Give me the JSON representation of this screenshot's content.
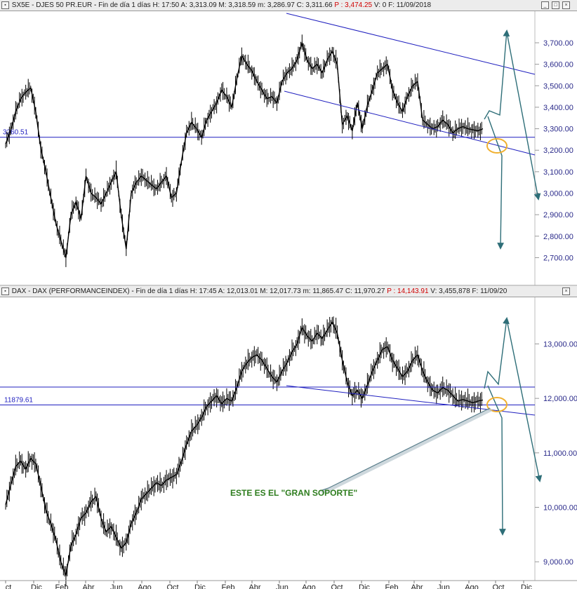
{
  "panel_top": {
    "header": {
      "symbol": "SX5E - DJES 50 PR.EUR",
      "period": "Fin de día 1 días",
      "h": "H: 17:50",
      "a": "A: 3,313.09",
      "m": "M: 3,318.59",
      "mi": "m: 3,286.97",
      "c": "C: 3,311.66",
      "p": "P : 3,474.25",
      "v": "V: 0",
      "f": "F: 11/09/2018"
    },
    "hline_label": "3260.51"
  },
  "panel_bottom": {
    "header": {
      "symbol": "DAX - DAX (PERFORMANCEINDEX)",
      "period": "Fin de día 1 días",
      "h": "H: 17:45",
      "a": "A: 12,013.01",
      "m": "M: 12,017.73",
      "mi": "m: 11,865.47",
      "c": "C: 11,970.27",
      "p": "P : 14,143.91",
      "v": "V: 3,455,878",
      "f": "F: 11/09/20"
    },
    "hline_label": "11879.61",
    "annotation": "ESTE ES EL \"GRAN SOPORTE\""
  },
  "x_axis_labels": [
    "ct",
    "Dic",
    "Feb",
    "Abr",
    "Jun",
    "Ago",
    "Oct",
    "Dic",
    "Feb",
    "Abr",
    "Jun",
    "Ago",
    "Oct",
    "Dic",
    "Feb",
    "Abr",
    "Jun",
    "Ago",
    "Oct",
    "Dic"
  ],
  "colors": {
    "price": "#000000",
    "trend": "#1f1fbf",
    "arrow": "#2e6e78",
    "circle": "#f0b030",
    "axis_text": "#2a2a8a",
    "annotation": "#2e7d1e"
  },
  "chart_data": [
    {
      "type": "line",
      "title": "SX5E - DJES 50 PR.EUR",
      "ylim": [
        2620,
        3775
      ],
      "yticks": [
        2700,
        2800,
        2900,
        3000,
        3100,
        3200,
        3300,
        3400,
        3500,
        3600,
        3700
      ],
      "ytick_labels": [
        "2,700.00",
        "2,800.00",
        "2,900.00",
        "3,000.00",
        "3,100.00",
        "3,200.00",
        "3,300.00",
        "3,400.00",
        "3,500.00",
        "3,600.00",
        "3,700.00"
      ],
      "hline": 3260.51,
      "series": [
        {
          "x": [
            0,
            1,
            2,
            3,
            4,
            5,
            6,
            7,
            8,
            9,
            10,
            11,
            12,
            13,
            14,
            15,
            16,
            17,
            18,
            19,
            20,
            21,
            22,
            23,
            24,
            25,
            26,
            27,
            28,
            29,
            30,
            31,
            32,
            33,
            34,
            35,
            36,
            37,
            38,
            39,
            40,
            41,
            42,
            43,
            44,
            45,
            46,
            47,
            48,
            49,
            50,
            51,
            52,
            53,
            54,
            55,
            56,
            57,
            58,
            59,
            60,
            61,
            62,
            63,
            64,
            65,
            66,
            67,
            68,
            69,
            70,
            71,
            72,
            73,
            74,
            75,
            76,
            77,
            78,
            79,
            80,
            81,
            82,
            83,
            84,
            85,
            86,
            87,
            88,
            89,
            90,
            91,
            92,
            93,
            94,
            95
          ],
          "y": [
            3230,
            3290,
            3380,
            3440,
            3470,
            3490,
            3380,
            3210,
            3100,
            2980,
            2860,
            2780,
            2700,
            2900,
            2960,
            2880,
            3080,
            3000,
            2980,
            2950,
            3000,
            3050,
            3100,
            2900,
            2740,
            3000,
            3050,
            3080,
            3060,
            3040,
            3020,
            3050,
            3080,
            2980,
            3000,
            3150,
            3280,
            3330,
            3300,
            3260,
            3340,
            3380,
            3420,
            3480,
            3450,
            3400,
            3530,
            3640,
            3600,
            3570,
            3520,
            3480,
            3440,
            3450,
            3420,
            3520,
            3560,
            3580,
            3620,
            3700,
            3620,
            3580,
            3600,
            3560,
            3620,
            3660,
            3600,
            3320,
            3360,
            3290,
            3420,
            3300,
            3410,
            3480,
            3560,
            3580,
            3600,
            3480,
            3420,
            3380,
            3450,
            3500,
            3520,
            3340,
            3320,
            3300,
            3310,
            3340,
            3320,
            3280,
            3300,
            3310,
            3300,
            3295,
            3290,
            3300
          ]
        }
      ]
    },
    {
      "type": "line",
      "title": "DAX - DAX (PERFORMANCEINDEX)",
      "ylim": [
        8500,
        13650
      ],
      "yticks": [
        9000,
        10000,
        11000,
        12000,
        13000
      ],
      "ytick_labels": [
        "9,000.00",
        "10,000.00",
        "11,000.00",
        "12,000.00",
        "13,000.00"
      ],
      "hline": 11879.61,
      "series": [
        {
          "x": [
            0,
            1,
            2,
            3,
            4,
            5,
            6,
            7,
            8,
            9,
            10,
            11,
            12,
            13,
            14,
            15,
            16,
            17,
            18,
            19,
            20,
            21,
            22,
            23,
            24,
            25,
            26,
            27,
            28,
            29,
            30,
            31,
            32,
            33,
            34,
            35,
            36,
            37,
            38,
            39,
            40,
            41,
            42,
            43,
            44,
            45,
            46,
            47,
            48,
            49,
            50,
            51,
            52,
            53,
            54,
            55,
            56,
            57,
            58,
            59,
            60,
            61,
            62,
            63,
            64,
            65,
            66,
            67,
            68,
            69,
            70,
            71,
            72,
            73,
            74,
            75,
            76,
            77,
            78,
            79,
            80,
            81,
            82,
            83,
            84,
            85,
            86,
            87,
            88,
            89,
            90,
            91,
            92,
            93,
            94,
            95
          ],
          "y": [
            10050,
            10400,
            10750,
            10850,
            10700,
            10900,
            10800,
            10400,
            9950,
            9700,
            9400,
            9000,
            8750,
            9300,
            9500,
            9800,
            9900,
            10100,
            10200,
            9800,
            9550,
            9650,
            9450,
            9250,
            9350,
            9700,
            9900,
            10150,
            10250,
            10350,
            10450,
            10400,
            10500,
            10550,
            10600,
            10850,
            11150,
            11400,
            11500,
            11650,
            11850,
            11950,
            12050,
            11900,
            12000,
            11950,
            12200,
            12500,
            12650,
            12750,
            12800,
            12700,
            12550,
            12400,
            12300,
            12500,
            12650,
            12850,
            13000,
            13300,
            13150,
            13050,
            13200,
            13100,
            13250,
            13400,
            13200,
            12700,
            12300,
            12050,
            12150,
            12000,
            12250,
            12500,
            12700,
            12900,
            12950,
            12700,
            12550,
            12400,
            12500,
            12700,
            12800,
            12500,
            12300,
            12150,
            12100,
            12200,
            12150,
            12050,
            11950,
            11980,
            11950,
            11920,
            11950,
            11970
          ]
        }
      ]
    }
  ]
}
